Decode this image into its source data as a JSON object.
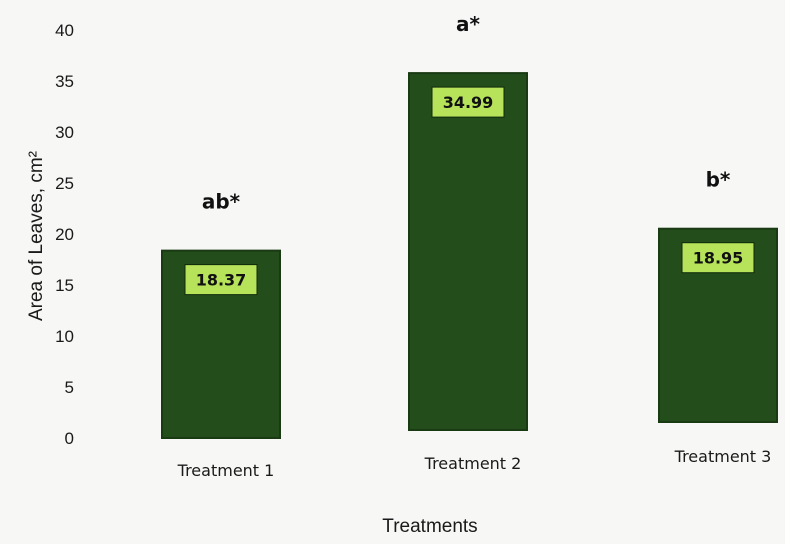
{
  "chart_data": {
    "type": "bar",
    "categories": [
      "Treatment 1",
      "Treatment 2",
      "Treatment 3"
    ],
    "values": [
      18.37,
      34.99,
      18.95
    ],
    "value_labels": [
      "18.37",
      "34.99",
      "18.95"
    ],
    "significance_labels": [
      "ab*",
      "a*",
      "b*"
    ],
    "xlabel": "Treatments",
    "ylabel": "Area of Leaves, cm²",
    "ylim": [
      0,
      40
    ],
    "yticks": [
      0,
      5,
      10,
      15,
      20,
      25,
      30,
      35,
      40
    ],
    "grid": false,
    "legend": "none",
    "colors": {
      "bar": "#244d1c",
      "bar_edge": "#1a3a14",
      "label_box": "#b6e35a",
      "background": "#f7f7f5"
    }
  }
}
